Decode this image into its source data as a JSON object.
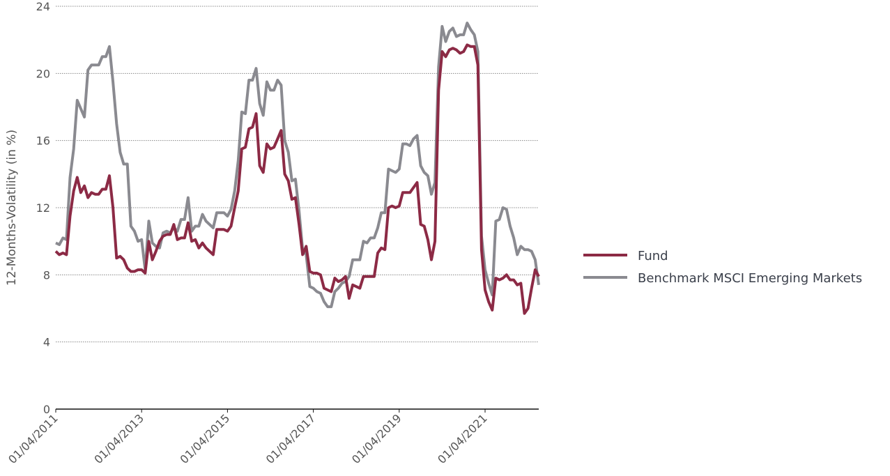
{
  "chart_data": {
    "type": "line",
    "ylabel": "12-Months-Volatility (in %)",
    "categories": [
      "01/04/2011",
      null,
      null,
      null,
      null,
      null,
      null,
      null,
      null,
      null,
      null,
      null,
      null,
      null,
      null,
      null,
      null,
      null,
      null,
      null,
      null,
      null,
      null,
      null,
      "01/04/2013",
      null,
      null,
      null,
      null,
      null,
      null,
      null,
      null,
      null,
      null,
      null,
      null,
      null,
      null,
      null,
      null,
      null,
      null,
      null,
      null,
      null,
      null,
      null,
      "01/04/2015",
      null,
      null,
      null,
      null,
      null,
      null,
      null,
      null,
      null,
      null,
      null,
      null,
      null,
      null,
      null,
      null,
      null,
      null,
      null,
      null,
      null,
      null,
      null,
      "01/04/2017",
      null,
      null,
      null,
      null,
      null,
      null,
      null,
      null,
      null,
      null,
      null,
      null,
      null,
      null,
      null,
      null,
      null,
      null,
      null,
      null,
      null,
      null,
      null,
      "01/04/2019",
      null,
      null,
      null,
      null,
      null,
      null,
      null,
      null,
      null,
      null,
      null,
      null,
      null,
      null,
      null,
      null,
      null,
      null,
      null,
      null,
      null,
      null,
      null,
      "01/04/2021",
      null,
      null,
      null,
      null,
      null,
      null,
      null,
      null,
      null,
      null,
      null,
      null,
      null,
      null,
      null
    ],
    "series": [
      {
        "name": "Fund",
        "color": "#8c2a45",
        "values": [
          9.4,
          9.2,
          9.3,
          9.2,
          11.5,
          13.0,
          13.8,
          12.9,
          13.3,
          12.6,
          12.9,
          12.8,
          12.8,
          13.1,
          13.1,
          13.9,
          12.0,
          9.0,
          9.1,
          8.9,
          8.4,
          8.2,
          8.2,
          8.3,
          8.3,
          8.1,
          10.0,
          8.9,
          9.4,
          10.0,
          10.3,
          10.4,
          10.4,
          11.0,
          10.1,
          10.2,
          10.2,
          11.1,
          10.0,
          10.1,
          9.6,
          9.9,
          9.6,
          9.4,
          9.2,
          10.7,
          10.7,
          10.7,
          10.6,
          10.9,
          12.0,
          13.0,
          15.5,
          15.6,
          16.7,
          16.8,
          17.6,
          14.5,
          14.1,
          15.8,
          15.5,
          15.6,
          16.1,
          16.6,
          14.0,
          13.6,
          12.5,
          12.6,
          11.0,
          9.2,
          9.7,
          8.2,
          8.1,
          8.1,
          8.0,
          7.2,
          7.1,
          7.0,
          7.8,
          7.6,
          7.7,
          7.9,
          6.6,
          7.4,
          7.3,
          7.2,
          7.9,
          7.9,
          7.9,
          7.9,
          9.3,
          9.6,
          9.5,
          12.0,
          12.1,
          12.0,
          12.1,
          12.9,
          12.9,
          12.9,
          13.2,
          13.5,
          11.0,
          10.9,
          10.1,
          8.9,
          10.0,
          19.0,
          21.3,
          21.0,
          21.4,
          21.5,
          21.4,
          21.2,
          21.3,
          21.7,
          21.6,
          21.6,
          20.5,
          9.5,
          7.1,
          6.4,
          5.9,
          7.8,
          7.7,
          7.8,
          8.0,
          7.7,
          7.7,
          7.4,
          7.5,
          5.7,
          6.0,
          7.2,
          8.3,
          7.9
        ]
      },
      {
        "name": "Benchmark MSCI Emerging Markets",
        "color": "#8a8a90",
        "values": [
          9.9,
          9.8,
          10.2,
          10.1,
          13.8,
          15.5,
          18.4,
          17.9,
          17.4,
          20.2,
          20.5,
          20.5,
          20.5,
          21.0,
          21.0,
          21.6,
          19.5,
          17.0,
          15.3,
          14.6,
          14.6,
          10.9,
          10.6,
          10.0,
          10.1,
          8.3,
          11.2,
          9.9,
          9.7,
          9.6,
          10.5,
          10.6,
          10.5,
          10.8,
          10.6,
          11.3,
          11.3,
          12.6,
          10.6,
          10.9,
          10.9,
          11.6,
          11.2,
          11.0,
          10.8,
          11.7,
          11.7,
          11.7,
          11.5,
          11.9,
          13.0,
          14.8,
          17.7,
          17.6,
          19.6,
          19.6,
          20.3,
          18.2,
          17.5,
          19.5,
          19.0,
          19.0,
          19.6,
          19.3,
          16.0,
          15.3,
          13.6,
          13.7,
          11.8,
          9.5,
          9.2,
          7.3,
          7.2,
          7.0,
          6.9,
          6.4,
          6.1,
          6.1,
          7.0,
          7.2,
          7.5,
          7.6,
          7.9,
          8.9,
          8.9,
          8.9,
          10.0,
          9.9,
          10.2,
          10.2,
          10.8,
          11.7,
          11.7,
          14.3,
          14.2,
          14.1,
          14.3,
          15.8,
          15.8,
          15.7,
          16.1,
          16.3,
          14.5,
          14.1,
          13.9,
          12.8,
          13.5,
          20.4,
          22.8,
          21.9,
          22.5,
          22.7,
          22.2,
          22.3,
          22.3,
          23.0,
          22.6,
          22.3,
          21.3,
          10.3,
          8.3,
          7.5,
          6.8,
          11.2,
          11.3,
          12.0,
          11.9,
          10.9,
          10.2,
          9.2,
          9.7,
          9.5,
          9.5,
          9.4,
          8.9,
          7.4
        ]
      }
    ],
    "ylim": [
      0,
      24
    ],
    "yticks": [
      0,
      4,
      8,
      12,
      16,
      20,
      24
    ],
    "grid": true,
    "legend": "right"
  }
}
